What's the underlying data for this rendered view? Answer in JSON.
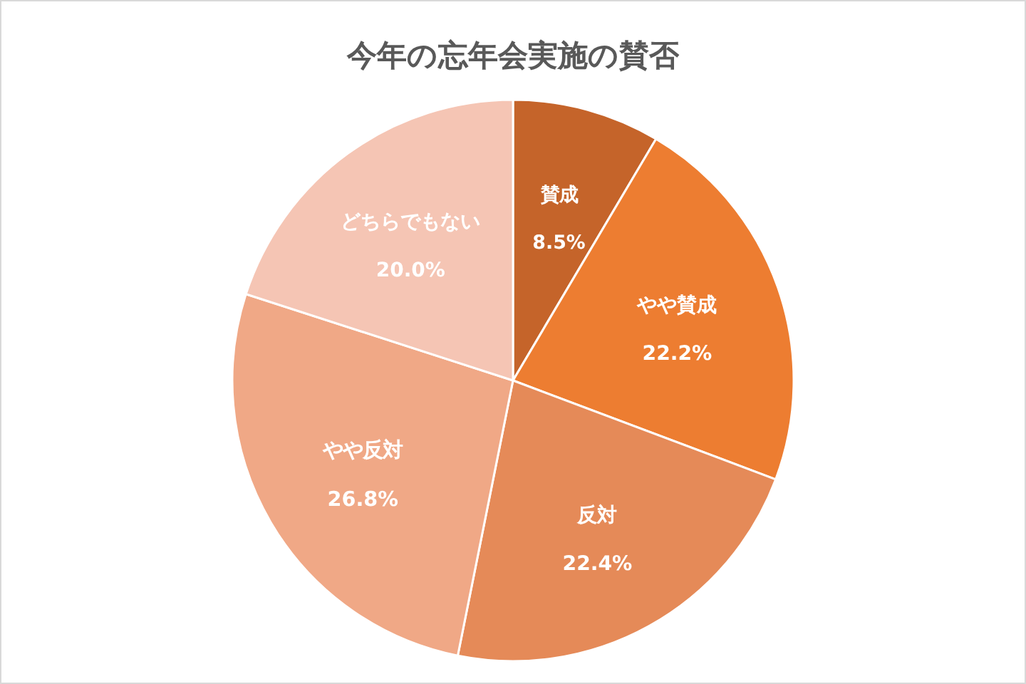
{
  "chart_data": {
    "type": "pie",
    "title": "今年の忘年会実施の賛否",
    "categories": [
      "賛成",
      "やや賛成",
      "反対",
      "やや反対",
      "どちらでもない"
    ],
    "values": [
      8.5,
      22.2,
      22.4,
      26.8,
      20.0
    ],
    "value_labels": [
      "8.5%",
      "22.2%",
      "22.4%",
      "26.8%",
      "20.0%"
    ],
    "colors": [
      "#c5642a",
      "#ed7d31",
      "#e58a58",
      "#f0a886",
      "#f5c5b4"
    ]
  }
}
